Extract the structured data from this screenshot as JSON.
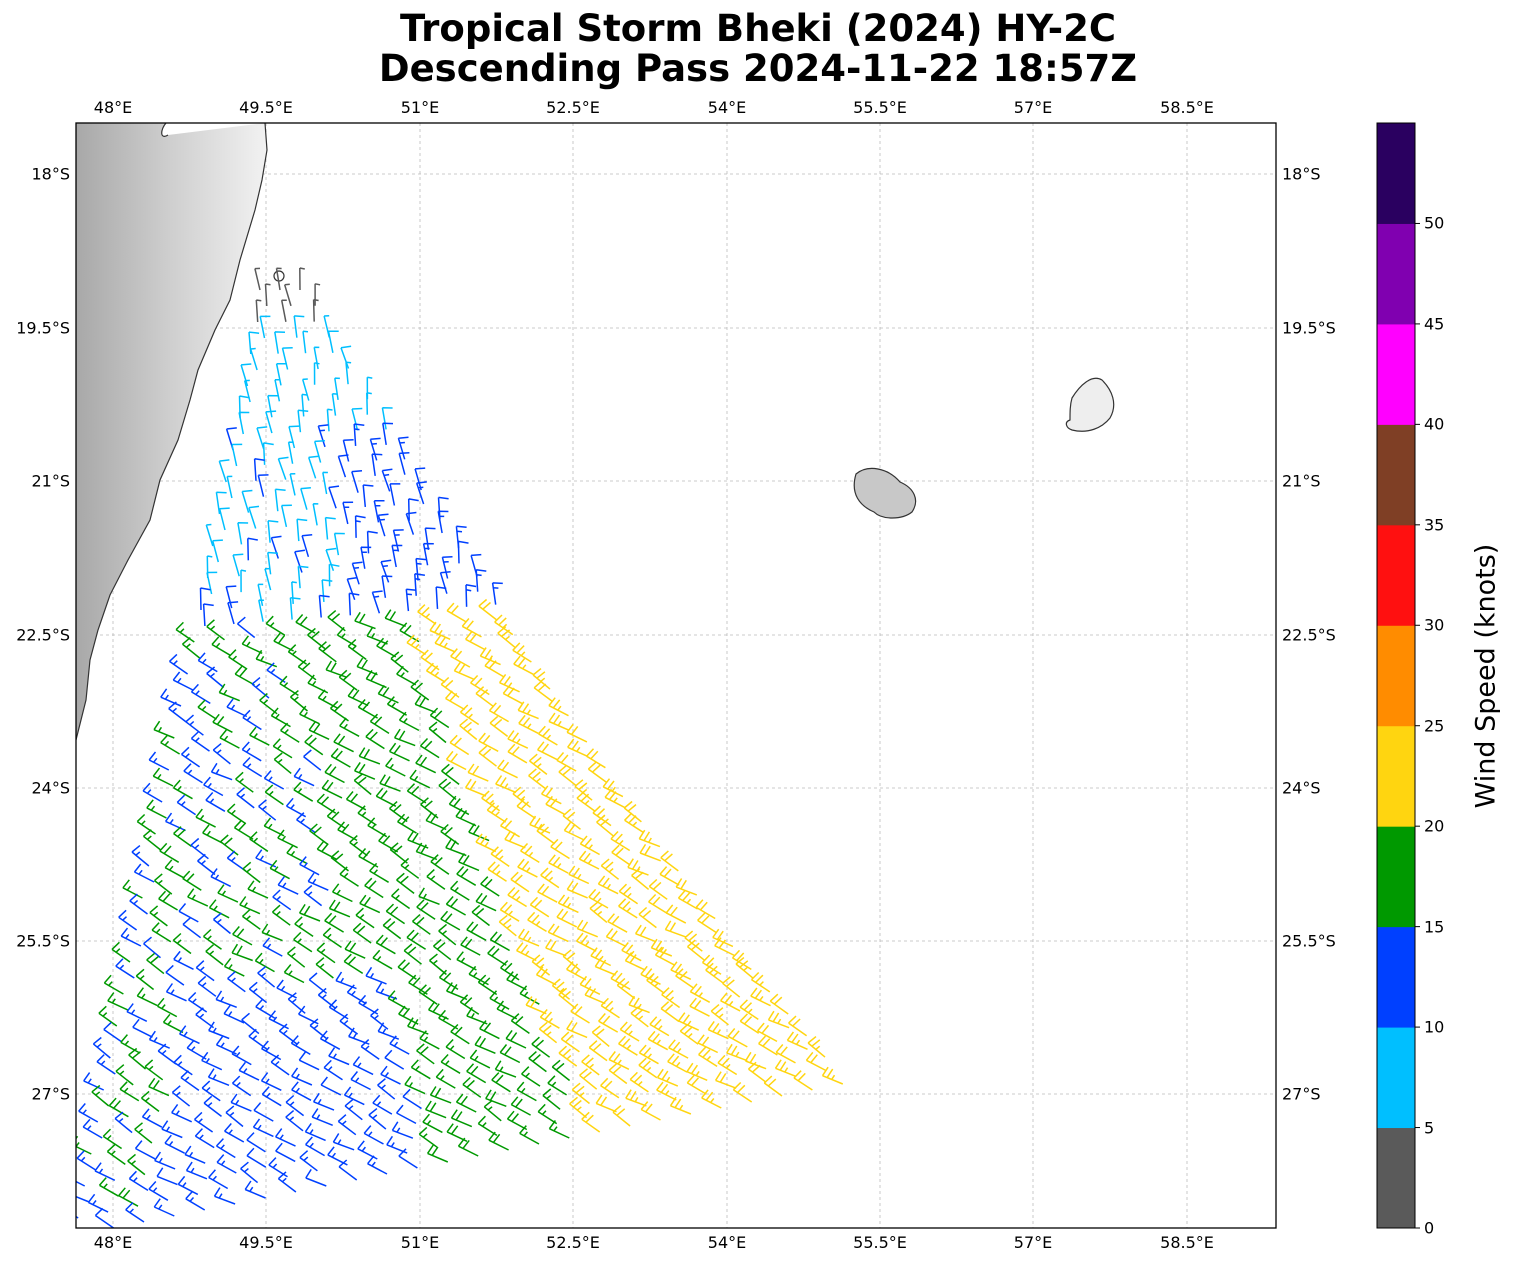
{
  "title_line1": "Tropical Storm Bheki (2024) HY-2C",
  "title_line2": "Descending Pass 2024-11-22 18:57Z",
  "map": {
    "lon_labels": [
      "48°E",
      "49.5°E",
      "51°E",
      "52.5°E",
      "54°E",
      "55.5°E",
      "57°E",
      "58.5°E"
    ],
    "lat_labels": [
      "18°S",
      "19.5°S",
      "21°S",
      "22.5°S",
      "24°S",
      "25.5°S",
      "27°S"
    ],
    "features": [
      "Madagascar east coast",
      "Réunion",
      "Mauritius"
    ]
  },
  "colorbar": {
    "label": "Wind Speed (knots)",
    "ticks": [
      "0",
      "5",
      "10",
      "15",
      "20",
      "25",
      "30",
      "35",
      "40",
      "45",
      "50"
    ],
    "bins": [
      {
        "range": [
          0,
          5
        ],
        "color": "#5a5a5a"
      },
      {
        "range": [
          5,
          10
        ],
        "color": "#00bfff"
      },
      {
        "range": [
          10,
          15
        ],
        "color": "#0040ff"
      },
      {
        "range": [
          15,
          20
        ],
        "color": "#009900"
      },
      {
        "range": [
          20,
          25
        ],
        "color": "#ffd510"
      },
      {
        "range": [
          25,
          30
        ],
        "color": "#ff8c00"
      },
      {
        "range": [
          30,
          35
        ],
        "color": "#ff1010"
      },
      {
        "range": [
          35,
          40
        ],
        "color": "#7f3f25"
      },
      {
        "range": [
          40,
          45
        ],
        "color": "#ff00ff"
      },
      {
        "range": [
          45,
          50
        ],
        "color": "#8000b0"
      },
      {
        "range": [
          50,
          55
        ],
        "color": "#2a0060"
      }
    ]
  }
}
